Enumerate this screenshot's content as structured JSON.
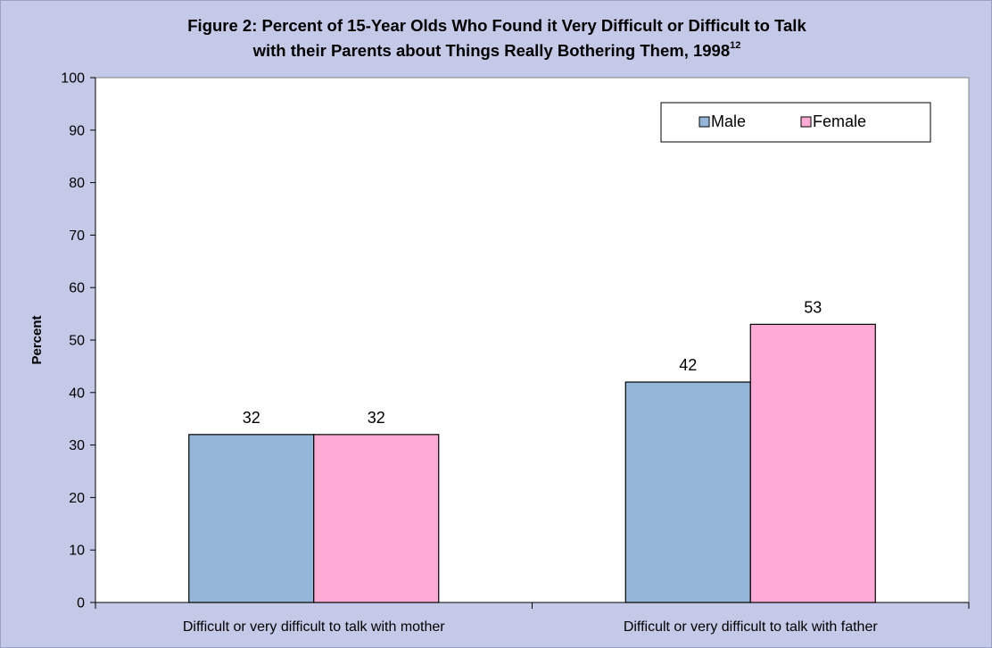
{
  "chart_data": {
    "type": "bar",
    "title_line1": "Figure 2: Percent of 15-Year Olds Who Found it Very Difficult or Difficult to Talk",
    "title_line2": "with their Parents about Things Really Bothering Them, 1998",
    "title_superscript": "12",
    "ylabel": "Percent",
    "xlabel": "",
    "ylim": [
      0,
      100
    ],
    "yticks": [
      0,
      10,
      20,
      30,
      40,
      50,
      60,
      70,
      80,
      90,
      100
    ],
    "categories": [
      "Difficult or very difficult to talk with mother",
      "Difficult or very difficult to talk with father"
    ],
    "series": [
      {
        "name": "Male",
        "values": [
          32,
          42
        ],
        "color": "#94b6d9"
      },
      {
        "name": "Female",
        "values": [
          32,
          53
        ],
        "color": "#ffabd5"
      }
    ],
    "data_labels": true,
    "grid": false,
    "legend_position": "top-right",
    "plot_background": "#ffffff",
    "frame_background": "#c5c9e8"
  }
}
